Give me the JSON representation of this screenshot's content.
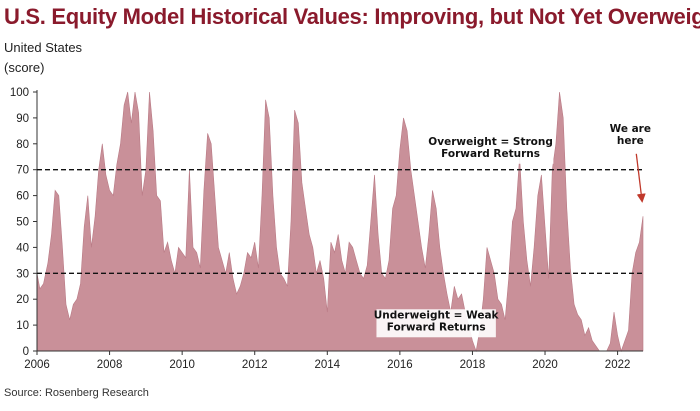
{
  "title": "U.S. Equity Model Historical Values: Improving, but Not Yet Overweight",
  "subtitle": "United States",
  "unit": "(score)",
  "source": "Source: Rosenberg Research",
  "colors": {
    "title": "#8a1a2c",
    "area": "#c99099",
    "area_edge": "#b97a85",
    "threshold_line": "#111111",
    "arrow": "#c0392b"
  },
  "chart_data": {
    "type": "area",
    "title": "U.S. Equity Model Historical Values: Improving, but Not Yet Overweight",
    "subtitle": "United States",
    "ylabel": "(score)",
    "xlabel": "",
    "xlim": [
      2006.0,
      2022.7
    ],
    "ylim": [
      0,
      100
    ],
    "x_ticks": [
      2006,
      2008,
      2010,
      2012,
      2014,
      2016,
      2018,
      2020,
      2022
    ],
    "y_ticks": [
      0,
      10,
      20,
      30,
      40,
      50,
      60,
      70,
      80,
      90,
      100
    ],
    "grid": false,
    "series": [
      {
        "x": [
          2006.0,
          2006.08,
          2006.18,
          2006.3,
          2006.4,
          2006.5,
          2006.6,
          2006.7,
          2006.8,
          2006.9,
          2007.0,
          2007.1,
          2007.2,
          2007.3,
          2007.4,
          2007.5,
          2007.6,
          2007.7,
          2007.8,
          2007.9,
          2008.0,
          2008.1,
          2008.2,
          2008.3,
          2008.4,
          2008.5,
          2008.6,
          2008.7,
          2008.8,
          2008.9,
          2009.0,
          2009.1,
          2009.2,
          2009.3,
          2009.4,
          2009.5,
          2009.6,
          2009.7,
          2009.8,
          2009.9,
          2010.0,
          2010.1,
          2010.2,
          2010.3,
          2010.4,
          2010.5,
          2010.6,
          2010.7,
          2010.8,
          2010.9,
          2011.0,
          2011.1,
          2011.2,
          2011.3,
          2011.4,
          2011.5,
          2011.6,
          2011.7,
          2011.8,
          2011.9,
          2012.0,
          2012.1,
          2012.2,
          2012.3,
          2012.4,
          2012.5,
          2012.6,
          2012.7,
          2012.8,
          2012.9,
          2013.0,
          2013.1,
          2013.2,
          2013.3,
          2013.4,
          2013.5,
          2013.6,
          2013.7,
          2013.8,
          2013.9,
          2014.0,
          2014.1,
          2014.2,
          2014.3,
          2014.4,
          2014.5,
          2014.6,
          2014.7,
          2014.8,
          2014.9,
          2015.0,
          2015.1,
          2015.2,
          2015.3,
          2015.4,
          2015.5,
          2015.6,
          2015.7,
          2015.8,
          2015.9,
          2016.0,
          2016.1,
          2016.2,
          2016.3,
          2016.4,
          2016.5,
          2016.6,
          2016.7,
          2016.8,
          2016.9,
          2017.0,
          2017.1,
          2017.2,
          2017.3,
          2017.4,
          2017.5,
          2017.6,
          2017.7,
          2017.8,
          2017.9,
          2018.0,
          2018.1,
          2018.2,
          2018.3,
          2018.4,
          2018.5,
          2018.6,
          2018.7,
          2018.8,
          2018.9,
          2019.0,
          2019.1,
          2019.2,
          2019.3,
          2019.4,
          2019.5,
          2019.6,
          2019.7,
          2019.8,
          2019.9,
          2020.0,
          2020.1,
          2020.2,
          2020.3,
          2020.4,
          2020.5,
          2020.6,
          2020.7,
          2020.8,
          2020.9,
          2021.0,
          2021.1,
          2021.2,
          2021.3,
          2021.4,
          2021.5,
          2021.6,
          2021.7,
          2021.8,
          2021.9,
          2022.0,
          2022.1,
          2022.2,
          2022.3,
          2022.4,
          2022.5,
          2022.6,
          2022.7
        ],
        "values": [
          30,
          24,
          26,
          34,
          45,
          62,
          60,
          40,
          18,
          12,
          18,
          20,
          26,
          48,
          60,
          40,
          52,
          70,
          80,
          68,
          62,
          60,
          72,
          80,
          95,
          100,
          88,
          100,
          92,
          60,
          70,
          100,
          85,
          60,
          58,
          38,
          42,
          35,
          30,
          40,
          38,
          36,
          70,
          40,
          38,
          32,
          62,
          84,
          80,
          60,
          40,
          35,
          30,
          38,
          28,
          22,
          25,
          30,
          38,
          36,
          42,
          32,
          60,
          97,
          90,
          60,
          40,
          30,
          28,
          25,
          50,
          93,
          88,
          65,
          55,
          45,
          40,
          30,
          35,
          28,
          15,
          42,
          38,
          45,
          35,
          30,
          42,
          40,
          35,
          30,
          28,
          33,
          50,
          68,
          45,
          30,
          28,
          35,
          55,
          60,
          78,
          90,
          85,
          70,
          60,
          50,
          40,
          32,
          45,
          62,
          55,
          40,
          30,
          22,
          15,
          25,
          20,
          22,
          15,
          10,
          4,
          0,
          8,
          20,
          40,
          35,
          30,
          20,
          18,
          12,
          28,
          50,
          55,
          75,
          50,
          35,
          25,
          40,
          60,
          68,
          48,
          28,
          70,
          80,
          100,
          90,
          55,
          32,
          18,
          14,
          12,
          6,
          9,
          4,
          2,
          0,
          0,
          0,
          3,
          15,
          6,
          0,
          4,
          8,
          30,
          38,
          42,
          52
        ]
      }
    ],
    "reference_lines": [
      70,
      30
    ],
    "annotations": [
      {
        "text_lines": [
          "Overweight = Strong",
          "Forward Returns"
        ],
        "x": 2018.5,
        "y": 75
      },
      {
        "text_lines": [
          "Underweight = Weak",
          "Forward Returns"
        ],
        "x": 2017.0,
        "y": 8
      },
      {
        "text_lines": [
          "We are",
          "here"
        ],
        "x": 2022.35,
        "y": 80
      }
    ]
  }
}
